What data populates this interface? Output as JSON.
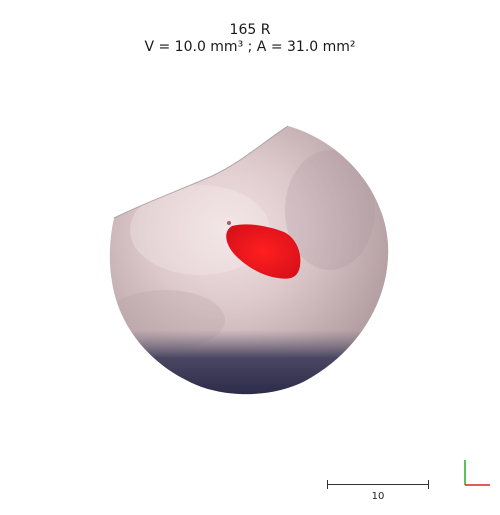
{
  "viewer": {
    "title": "165 R",
    "measurement": "V = 10.0 mm³ ; A = 31.0 mm²"
  },
  "scale_bar": {
    "label": "10"
  },
  "colors": {
    "background": "#ffffff",
    "lesion": "#e8141a",
    "tissue": "#c9b8b8",
    "shadow": "#2a2c4a",
    "axis_x": "#e02020",
    "axis_y": "#20b020"
  },
  "icons": {
    "orientation": "orientation-axes-icon"
  }
}
